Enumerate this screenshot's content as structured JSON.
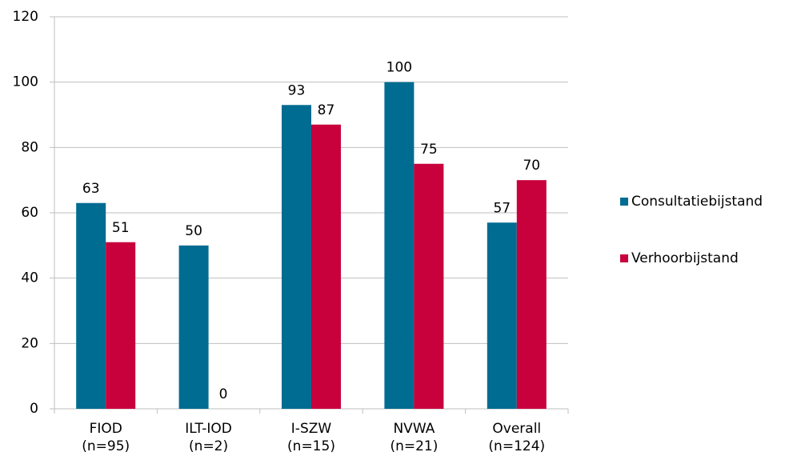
{
  "chart_data": {
    "type": "bar",
    "categories": [
      [
        "FIOD",
        "(n=95)"
      ],
      [
        "ILT-IOD",
        "(n=2)"
      ],
      [
        "I-SZW",
        "(n=15)"
      ],
      [
        "NVWA",
        "(n=21)"
      ],
      [
        "Overall",
        "(n=124)"
      ]
    ],
    "series": [
      {
        "name": "Consultatiebijstand",
        "color": "#006c91",
        "values": [
          63,
          50,
          93,
          100,
          57
        ]
      },
      {
        "name": "Verhoorbijstand",
        "color": "#c8003c",
        "values": [
          51,
          0,
          87,
          75,
          70
        ]
      }
    ],
    "ylim": [
      0,
      120
    ],
    "yticks": [
      0,
      20,
      40,
      60,
      80,
      100,
      120
    ],
    "grid": true,
    "legend": "right"
  }
}
